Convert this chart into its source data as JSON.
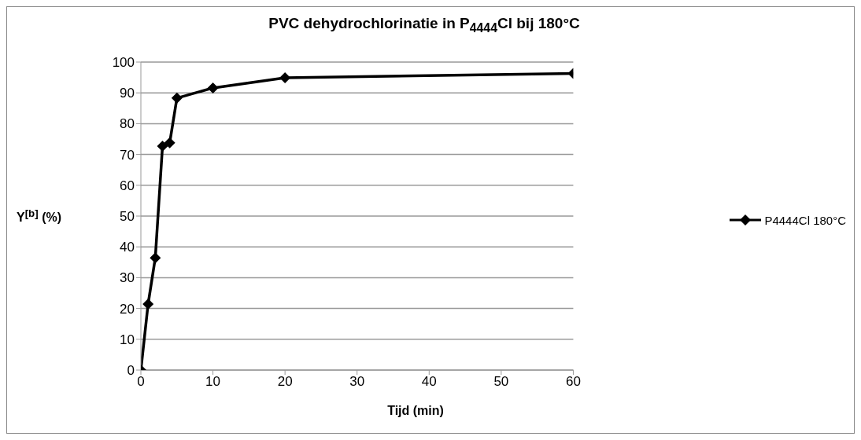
{
  "chart_data": {
    "type": "line",
    "title": "PVC dehydrochlorinatie in P$_{4444}$Cl bij 180°C",
    "xlabel": "Tijd (min)",
    "ylabel": "Y$^{[b]}$ (%)",
    "x": [
      0,
      1,
      2,
      3,
      4,
      5,
      10,
      20,
      60
    ],
    "series": [
      {
        "name": "P4444Cl 180°C",
        "color": "#000000",
        "values": [
          0,
          21.4,
          36.4,
          72.7,
          73.8,
          88.3,
          91.6,
          94.9,
          96.3
        ]
      }
    ],
    "xlim": [
      0,
      60
    ],
    "xticks": [
      0,
      10,
      20,
      30,
      40,
      50,
      60
    ],
    "ylim": [
      0,
      100
    ],
    "yticks": [
      0,
      10,
      20,
      30,
      40,
      50,
      60,
      70,
      80,
      90,
      100
    ],
    "grid": "y",
    "legend": "right",
    "marker": "diamond",
    "line_style": "solid"
  }
}
